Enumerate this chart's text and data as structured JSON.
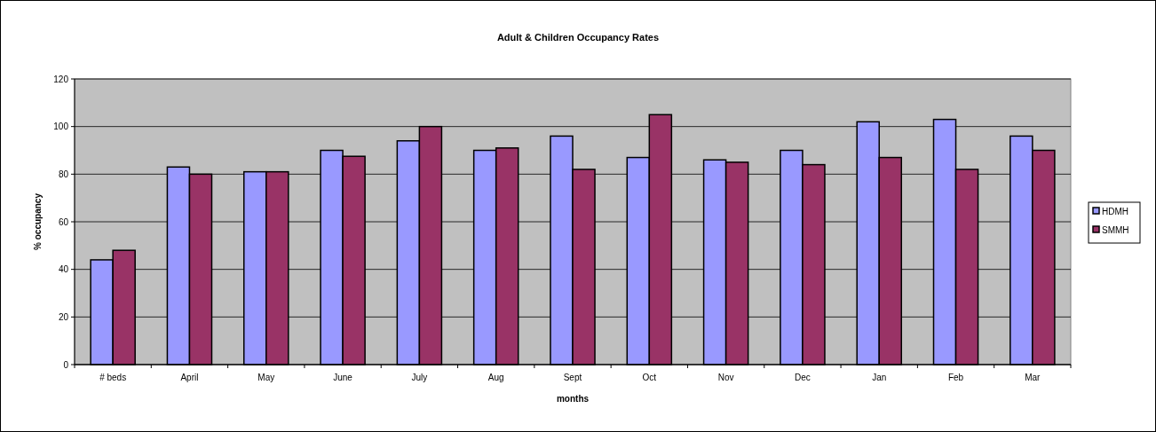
{
  "chart_data": {
    "type": "bar",
    "title": "Adult & Children Occupancy Rates",
    "xlabel": "months",
    "ylabel": "% occupancy",
    "categories": [
      "# beds",
      "April",
      "May",
      "June",
      "July",
      "Aug",
      "Sept",
      "Oct",
      "Nov",
      "Dec",
      "Jan",
      "Feb",
      "Mar"
    ],
    "series": [
      {
        "name": "HDMH",
        "color": "#9999ff",
        "values": [
          44,
          83,
          81,
          90,
          94,
          90,
          96,
          87,
          86,
          90,
          102,
          103,
          96
        ]
      },
      {
        "name": "SMMH",
        "color": "#993366",
        "values": [
          48,
          80,
          81,
          87.5,
          100,
          91,
          82,
          105,
          85,
          84,
          87,
          82,
          90
        ]
      }
    ],
    "ylim": [
      0,
      120
    ],
    "yticks": [
      0,
      20,
      40,
      60,
      80,
      100,
      120
    ],
    "grid": "y",
    "legend": "right"
  }
}
